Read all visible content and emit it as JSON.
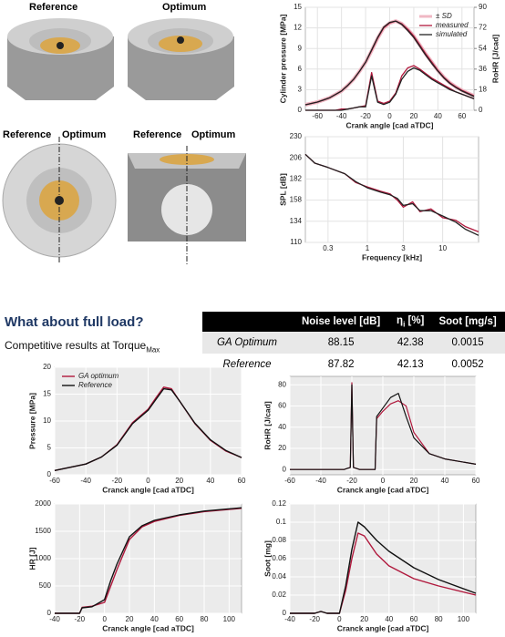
{
  "image_labels": [
    "Reference",
    "Optimum",
    "Reference",
    "Optimum",
    "Reference",
    "Optimum"
  ],
  "heading": "What about full load?",
  "subheading": {
    "text": "Competitive results at Torque",
    "sub": "Max"
  },
  "table": {
    "columns": [
      "Noise level [dB]",
      {
        "symbol": "η",
        "sub": "i",
        "unit": "[%]"
      },
      "Soot [mg/s]"
    ],
    "rows": [
      [
        "GA Optimum",
        88.15,
        42.38,
        0.0015
      ],
      [
        "Reference",
        87.82,
        42.13,
        0.0052
      ]
    ]
  },
  "chart_data": [
    {
      "type": "line",
      "xlabel": "Crank angle [cad aTDC]",
      "ylabel": "Cylinder pressure [MPa]",
      "y2label": "RoHR [J/cad]",
      "x": [
        -70,
        -65,
        -60,
        -55,
        -50,
        -45,
        -40,
        -35,
        -30,
        -25,
        -20,
        -15,
        -10,
        -5,
        0,
        5,
        10,
        15,
        20,
        25,
        30,
        35,
        40,
        45,
        50,
        55,
        60,
        65,
        70
      ],
      "xlim": [
        -70,
        70
      ],
      "xticks": [
        -60,
        -40,
        -20,
        0,
        20,
        40,
        60
      ],
      "ylim": [
        0,
        15
      ],
      "yticks": [
        0,
        3,
        6,
        9,
        12,
        15
      ],
      "y2lim": [
        0,
        90
      ],
      "y2ticks": [
        0,
        18,
        36,
        54,
        72,
        90
      ],
      "grid": true,
      "panel_color": "#ffffff",
      "grid_color": "#e3e3e3",
      "legend": "upper right",
      "series": [
        {
          "name": "± SD",
          "color": "#f0b8c4",
          "line_width": 4,
          "values": [
            0.8,
            1.0,
            1.2,
            1.5,
            1.8,
            2.3,
            2.8,
            3.6,
            4.5,
            5.7,
            7.0,
            8.7,
            10.5,
            12.0,
            12.7,
            13.0,
            12.6,
            11.8,
            10.8,
            9.5,
            8.2,
            7.0,
            5.8,
            4.8,
            4.0,
            3.4,
            2.9,
            2.5,
            2.1
          ]
        },
        {
          "name": "measured",
          "color": "#b0183c",
          "line_width": 1.3,
          "values": [
            0.8,
            1.0,
            1.2,
            1.5,
            1.8,
            2.3,
            2.8,
            3.6,
            4.5,
            5.7,
            7.0,
            8.7,
            10.5,
            12.0,
            12.7,
            13.0,
            12.6,
            11.8,
            10.8,
            9.5,
            8.2,
            7.0,
            5.8,
            4.8,
            4.0,
            3.4,
            2.9,
            2.5,
            2.1
          ]
        },
        {
          "name": "simulated",
          "color": "#222222",
          "line_width": 1.3,
          "values": [
            0.8,
            1.0,
            1.2,
            1.5,
            1.8,
            2.3,
            2.8,
            3.6,
            4.5,
            5.7,
            7.0,
            8.8,
            10.6,
            12.1,
            12.8,
            13.0,
            12.5,
            11.6,
            10.6,
            9.3,
            8.0,
            6.8,
            5.7,
            4.7,
            3.9,
            3.3,
            2.8,
            2.4,
            2.0
          ]
        },
        {
          "axis": "y2",
          "color": "#b0183c",
          "line_width": 1.3,
          "values": [
            0,
            0,
            0,
            0,
            0,
            0,
            1,
            1,
            2,
            3,
            4,
            33,
            8,
            6,
            8,
            15,
            30,
            37,
            39,
            36,
            32,
            28,
            25,
            22,
            19,
            16,
            14,
            12,
            10
          ]
        },
        {
          "axis": "y2",
          "color": "#222222",
          "line_width": 1.3,
          "values": [
            0,
            0,
            0,
            0,
            0,
            0,
            0,
            1,
            2,
            3,
            3,
            30,
            7,
            5,
            7,
            14,
            27,
            34,
            37,
            35,
            31,
            27,
            24,
            21,
            18,
            16,
            14,
            12,
            10
          ]
        }
      ]
    },
    {
      "type": "line",
      "xlabel": "Frequency [kHz]",
      "ylabel": "SPL [dB]",
      "xscale": "log",
      "x": [
        0.15,
        0.2,
        0.3,
        0.5,
        0.7,
        1,
        1.5,
        2,
        2.5,
        3,
        4,
        5,
        7,
        10,
        15,
        20,
        30
      ],
      "xlim": [
        0.15,
        30
      ],
      "xticks": [
        0.3,
        1,
        3,
        10
      ],
      "ylim": [
        110,
        230
      ],
      "yticks": [
        110,
        134,
        158,
        182,
        206,
        230
      ],
      "grid": true,
      "panel_color": "#ffffff",
      "grid_color": "#e3e3e3",
      "series": [
        {
          "color": "#b0183c",
          "line_width": 1.3,
          "values": [
            210,
            200,
            195,
            188,
            178,
            173,
            168,
            165,
            158,
            150,
            156,
            145,
            148,
            138,
            135,
            128,
            122
          ]
        },
        {
          "color": "#222222",
          "line_width": 1.3,
          "values": [
            210,
            200,
            195,
            188,
            179,
            172,
            167,
            164,
            160,
            152,
            154,
            146,
            146,
            140,
            133,
            125,
            118
          ]
        }
      ]
    },
    {
      "type": "line",
      "xlabel": "Cranck angle [cad aTDC]",
      "ylabel": "Pressure [MPa]",
      "x": [
        -60,
        -40,
        -30,
        -20,
        -10,
        0,
        5,
        10,
        15,
        20,
        30,
        40,
        50,
        60
      ],
      "xlim": [
        -60,
        60
      ],
      "xticks": [
        -60,
        -40,
        -20,
        0,
        20,
        40,
        60
      ],
      "ylim": [
        0,
        20
      ],
      "yticks": [
        0,
        5,
        10,
        15,
        20
      ],
      "grid": true,
      "panel_color": "#ebebeb",
      "grid_color": "#ffffff",
      "legend": "upper left",
      "series": [
        {
          "name": "GA optimum",
          "color": "#b0183c",
          "line_width": 1.4,
          "values": [
            0.8,
            2.0,
            3.3,
            5.6,
            9.7,
            12.2,
            14.3,
            16.3,
            16,
            13.8,
            9.5,
            6.4,
            4.4,
            3.2
          ]
        },
        {
          "name": "Reference",
          "color": "#111111",
          "line_width": 1.4,
          "values": [
            0.8,
            2.0,
            3.3,
            5.5,
            9.5,
            12,
            14,
            16,
            15.8,
            13.8,
            9.6,
            6.5,
            4.5,
            3.2
          ]
        }
      ]
    },
    {
      "type": "line",
      "xlabel": "Cranck angle [cad aTDC]",
      "ylabel": "RoHR [J/cad]",
      "x": [
        -60,
        -25,
        -21,
        -20,
        -19,
        -15,
        -5,
        -4,
        0,
        5,
        10,
        15,
        20,
        30,
        40,
        60
      ],
      "xlim": [
        -60,
        60
      ],
      "xticks": [
        -60,
        -40,
        -20,
        0,
        20,
        40,
        60
      ],
      "ylim": [
        -5,
        88
      ],
      "yticks": [
        0,
        20,
        40,
        60,
        80
      ],
      "grid": true,
      "panel_color": "#ebebeb",
      "grid_color": "#ffffff",
      "series": [
        {
          "color": "#b0183c",
          "line_width": 1.2,
          "values": [
            0,
            0,
            2,
            82,
            2,
            0,
            0,
            48,
            55,
            62,
            65,
            60,
            35,
            15,
            10,
            5
          ]
        },
        {
          "color": "#111111",
          "line_width": 1.2,
          "values": [
            0,
            0,
            2,
            80,
            2,
            0,
            0,
            50,
            58,
            68,
            72,
            50,
            30,
            15,
            10,
            5
          ]
        }
      ]
    },
    {
      "type": "line",
      "xlabel": "Cranck angle [cad aTDC]",
      "ylabel": "HR [J]",
      "x": [
        -40,
        -20,
        -18,
        -10,
        0,
        5,
        10,
        20,
        30,
        40,
        60,
        80,
        110
      ],
      "xlim": [
        -40,
        110
      ],
      "xticks": [
        -40,
        -20,
        0,
        20,
        40,
        60,
        80,
        100
      ],
      "ylim": [
        0,
        2000
      ],
      "yticks": [
        0,
        500,
        1000,
        1500,
        2000
      ],
      "grid": true,
      "panel_color": "#ebebeb",
      "grid_color": "#ffffff",
      "series": [
        {
          "color": "#b0183c",
          "line_width": 1.4,
          "values": [
            0,
            0,
            110,
            130,
            200,
            500,
            800,
            1350,
            1580,
            1680,
            1790,
            1860,
            1920
          ]
        },
        {
          "color": "#111111",
          "line_width": 1.4,
          "values": [
            0,
            0,
            100,
            120,
            250,
            600,
            900,
            1400,
            1600,
            1700,
            1800,
            1870,
            1930
          ]
        }
      ]
    },
    {
      "type": "line",
      "xlabel": "Cranck angle [cad aTDC]",
      "ylabel": "Soot [mg]",
      "x": [
        -40,
        -20,
        -15,
        -10,
        0,
        5,
        10,
        15,
        20,
        30,
        40,
        60,
        80,
        110
      ],
      "xlim": [
        -40,
        110
      ],
      "xticks": [
        -40,
        -20,
        0,
        20,
        40,
        60,
        80,
        100
      ],
      "ylim": [
        0,
        0.12
      ],
      "yticks": [
        0,
        0.02,
        0.04,
        0.06,
        0.08,
        0.1,
        0.12
      ],
      "grid": true,
      "panel_color": "#ebebeb",
      "grid_color": "#ffffff",
      "series": [
        {
          "color": "#b0183c",
          "line_width": 1.4,
          "values": [
            0,
            0,
            0.002,
            0,
            0,
            0.025,
            0.06,
            0.088,
            0.085,
            0.065,
            0.052,
            0.038,
            0.03,
            0.02
          ]
        },
        {
          "color": "#111111",
          "line_width": 1.4,
          "values": [
            0,
            0,
            0.002,
            0,
            0,
            0.03,
            0.07,
            0.1,
            0.095,
            0.08,
            0.068,
            0.05,
            0.037,
            0.022
          ]
        }
      ]
    }
  ]
}
